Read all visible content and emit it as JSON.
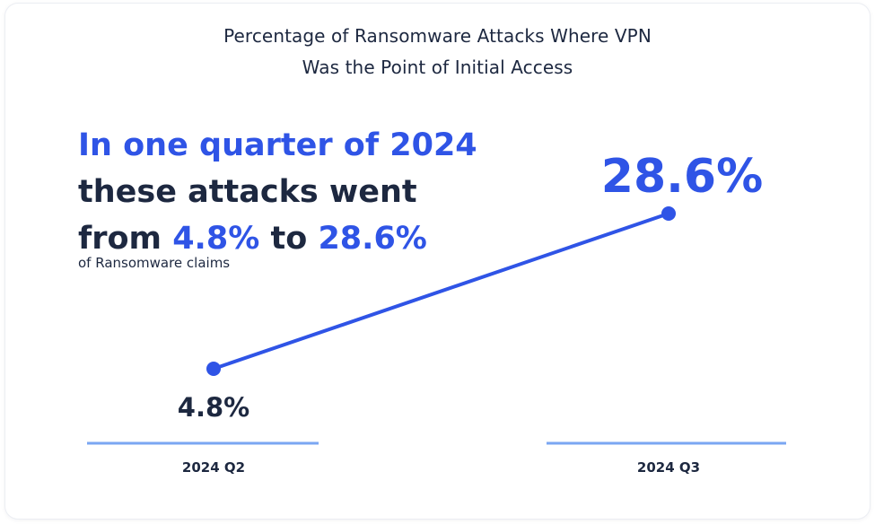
{
  "headline": {
    "line1": "In one quarter of 2024",
    "line2": "these attacks went",
    "line3_prefix": "from ",
    "line3_from": "4.8%",
    "line3_mid": " to ",
    "line3_to": "28.6%",
    "subtext": "of Ransomware claims"
  },
  "colors": {
    "accent": "#2f54e6",
    "text": "#1d2840",
    "axis": "#7aa6f2"
  },
  "chart_data": {
    "type": "line",
    "title": "Percentage of Ransomware Attacks Where VPN Was the Point of Initial Access",
    "title_lines": [
      "Percentage of Ransomware Attacks Where VPN",
      "Was the Point of Initial Access"
    ],
    "categories": [
      "2024 Q2",
      "2024 Q3"
    ],
    "series": [
      {
        "values": [
          4.8,
          28.6
        ],
        "labels": [
          "4.8%",
          "28.6%"
        ]
      }
    ],
    "unit": "%",
    "ylim": [
      4.8,
      28.6
    ],
    "grid": false,
    "legend": "none"
  }
}
